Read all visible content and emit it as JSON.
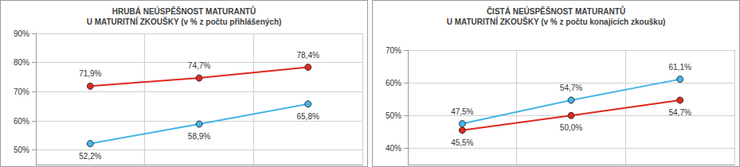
{
  "chart_data": [
    {
      "type": "line",
      "title": "HRUBÁ NEÚSPĚŠNOST MATURANTŮ",
      "subtitle": "U MATURITNÍ ZKOUŠKY (v % z počtu přihlášených)",
      "categories": [
        null,
        null,
        null
      ],
      "series": [
        {
          "color": "#e0281e",
          "marker": "circle",
          "values": [
            71.9,
            74.7,
            78.4
          ],
          "value_labels": [
            "71,9%",
            "74,7%",
            "78,4%"
          ]
        },
        {
          "color": "#45b5e6",
          "marker": "circle",
          "values": [
            52.2,
            58.9,
            65.8
          ],
          "value_labels": [
            "52,2%",
            "58,9%",
            "65,8%"
          ]
        }
      ],
      "ylim": [
        45,
        90
      ],
      "yticks": [
        {
          "value": 50,
          "label": "50%"
        },
        {
          "value": 60,
          "label": "60%"
        },
        {
          "value": 70,
          "label": "70%"
        },
        {
          "value": 80,
          "label": "80%"
        },
        {
          "value": 90,
          "label": "90%"
        }
      ],
      "grid": true,
      "data_labels": true,
      "tick_labels": "y"
    },
    {
      "type": "line",
      "title": "ČISTÁ NEÚSPĚŠNOST MATURANTŮ",
      "subtitle": "U MATURITNÍ ZKOUŠKY (v % z počtu konajících zkoušku)",
      "categories": [
        null,
        null,
        null
      ],
      "series": [
        {
          "color": "#45b5e6",
          "marker": "circle",
          "values": [
            47.5,
            54.7,
            61.1
          ],
          "value_labels": [
            "47,5%",
            "54,7%",
            "61,1%"
          ]
        },
        {
          "color": "#e0281e",
          "marker": "circle",
          "values": [
            45.5,
            50.0,
            54.7
          ],
          "value_labels": [
            "45,5%",
            "50,0%",
            "54,7%"
          ]
        }
      ],
      "ylim": [
        35,
        70
      ],
      "yticks": [
        {
          "value": 40,
          "label": "40%"
        },
        {
          "value": 50,
          "label": "50%"
        },
        {
          "value": 60,
          "label": "60%"
        },
        {
          "value": 70,
          "label": "70%"
        }
      ],
      "grid": true,
      "data_labels": true,
      "tick_labels": "y"
    }
  ]
}
